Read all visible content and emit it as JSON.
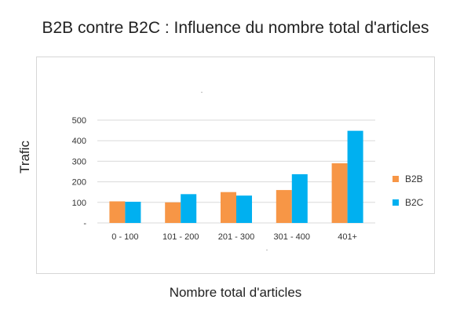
{
  "chart_data": {
    "type": "bar",
    "title": "B2B contre B2C : Influence du nombre total d'articles",
    "xlabel": "Nombre total d'articles",
    "ylabel": "Trafic",
    "categories": [
      "0 - 100",
      "101 - 200",
      "201 - 300",
      "301 - 400",
      "401+"
    ],
    "series": [
      {
        "name": "B2B",
        "values": [
          105,
          100,
          150,
          160,
          290
        ],
        "color": "#F79646"
      },
      {
        "name": "B2C",
        "values": [
          103,
          140,
          133,
          237,
          448
        ],
        "color": "#00B0F0"
      }
    ],
    "ylim": [
      0,
      500
    ],
    "yticks": [
      0,
      100,
      200,
      300,
      400,
      500
    ],
    "ytick_labels": [
      "-",
      "100",
      "200",
      "300",
      "400",
      "500"
    ],
    "grid": true,
    "legend": "right"
  }
}
